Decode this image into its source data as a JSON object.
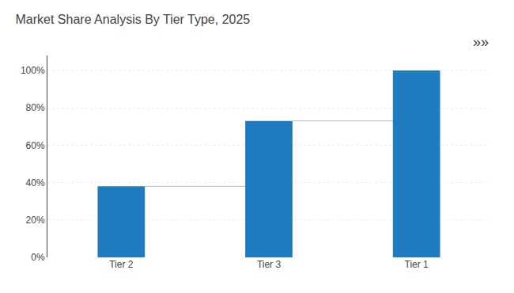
{
  "chart_data": {
    "type": "bar",
    "title": "Market Share Analysis By Tier Type, 2025",
    "categories": [
      "Tier 2",
      "Tier 3",
      "Tier 1"
    ],
    "values": [
      38,
      73,
      100
    ],
    "color": "#1F7BBF",
    "ylim": [
      0,
      108
    ],
    "yticks": [
      {
        "value": 0,
        "label": "0%"
      },
      {
        "value": 20,
        "label": "20%"
      },
      {
        "value": 40,
        "label": "40%"
      },
      {
        "value": 60,
        "label": "60%"
      },
      {
        "value": 80,
        "label": "80%"
      },
      {
        "value": 100,
        "label": "100%"
      }
    ],
    "grid": true,
    "annotations": [
      "»»"
    ]
  }
}
